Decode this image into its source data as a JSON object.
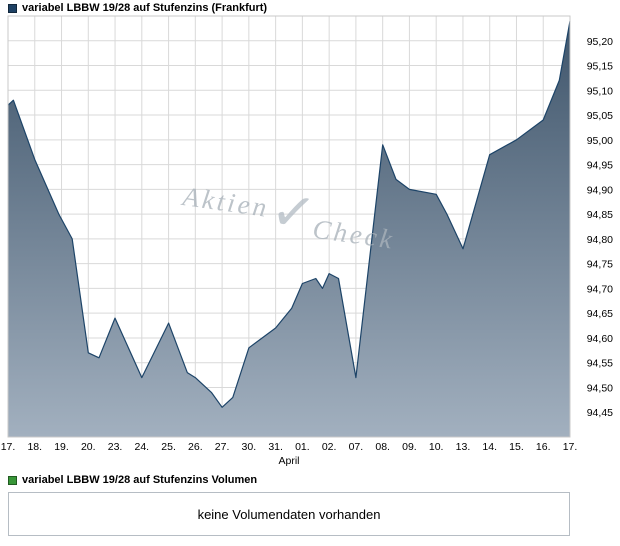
{
  "legend": {
    "price_label": "variabel LBBW 19/28 auf Stufenzins (Frankfurt)",
    "volume_label": "variabel LBBW 19/28 auf Stufenzins Volumen",
    "price_color": "#1e4164",
    "volume_color": "#389638"
  },
  "watermark": {
    "part1": "Aktien",
    "check": "✓",
    "part2": "Check"
  },
  "volume": {
    "message": "keine Volumendaten vorhanden"
  },
  "chart_data": {
    "type": "area",
    "title": "variabel LBBW 19/28 auf Stufenzins (Frankfurt)",
    "x_axis_label": "April",
    "x_tick_labels": [
      "17.",
      "18.",
      "19.",
      "20.",
      "23.",
      "24.",
      "25.",
      "26.",
      "27.",
      "30.",
      "31.",
      "01.",
      "02.",
      "07.",
      "08.",
      "09.",
      "10.",
      "13.",
      "14.",
      "15.",
      "16.",
      "17."
    ],
    "y_ticks": [
      95.2,
      95.15,
      95.1,
      95.05,
      95.0,
      94.95,
      94.9,
      94.85,
      94.8,
      94.75,
      94.7,
      94.65,
      94.6,
      94.55,
      94.5,
      94.45
    ],
    "y_tick_labels": [
      "95,20",
      "95,15",
      "95,10",
      "95,05",
      "95,00",
      "94,95",
      "94,90",
      "94,85",
      "94,80",
      "94,75",
      "94,70",
      "94,65",
      "94,60",
      "94,55",
      "94,50",
      "94,45"
    ],
    "ylim": [
      94.4,
      95.25
    ],
    "grid": true,
    "legend_position": "top-left",
    "series": [
      {
        "name": "variabel LBBW 19/28 auf Stufenzins (Frankfurt)",
        "points": [
          [
            0,
            95.07
          ],
          [
            0.2,
            95.08
          ],
          [
            1,
            94.96
          ],
          [
            1.9,
            94.85
          ],
          [
            2.4,
            94.8
          ],
          [
            3,
            94.57
          ],
          [
            3.4,
            94.56
          ],
          [
            4,
            94.64
          ],
          [
            5,
            94.52
          ],
          [
            6,
            94.63
          ],
          [
            6.7,
            94.53
          ],
          [
            7,
            94.52
          ],
          [
            7.6,
            94.49
          ],
          [
            8,
            94.46
          ],
          [
            8.4,
            94.48
          ],
          [
            9,
            94.58
          ],
          [
            10,
            94.62
          ],
          [
            10.6,
            94.66
          ],
          [
            11,
            94.71
          ],
          [
            11.5,
            94.72
          ],
          [
            11.75,
            94.7
          ],
          [
            12,
            94.73
          ],
          [
            12.35,
            94.72
          ],
          [
            13,
            94.52
          ],
          [
            14,
            94.99
          ],
          [
            14.5,
            94.92
          ],
          [
            15,
            94.9
          ],
          [
            16,
            94.89
          ],
          [
            16.4,
            94.85
          ],
          [
            17,
            94.78
          ],
          [
            18,
            94.97
          ],
          [
            19,
            95.0
          ],
          [
            20,
            95.04
          ],
          [
            20.6,
            95.12
          ],
          [
            21,
            95.24
          ]
        ]
      }
    ],
    "colors": {
      "line": "#1d4468",
      "fill_top": "#3e546a",
      "fill_bottom": "#a2b0bf",
      "grid": "#d9d9d9",
      "plot_border": "#c9c9c9"
    }
  }
}
